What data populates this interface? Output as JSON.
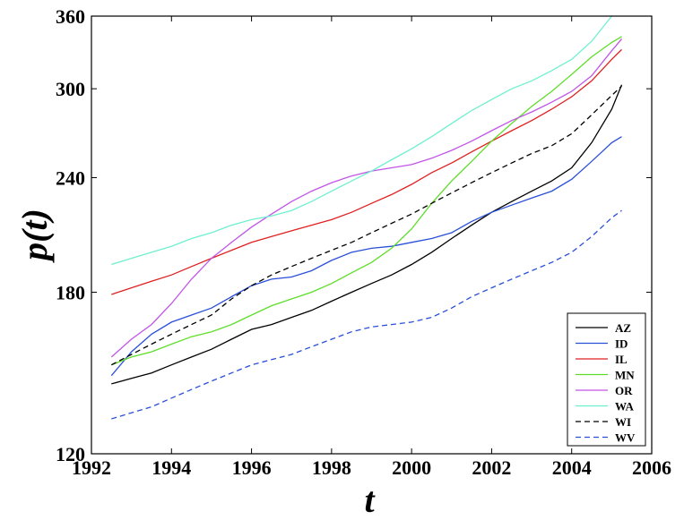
{
  "chart_data": {
    "type": "line",
    "title": "",
    "xlabel": "t",
    "ylabel": "p(t)",
    "xlim": [
      1992,
      2006
    ],
    "ylim": [
      120,
      360
    ],
    "yscale": "log",
    "xticks": [
      "1992",
      "1994",
      "1996",
      "1998",
      "2000",
      "2002",
      "2004",
      "2006"
    ],
    "yticks": [
      "120",
      "180",
      "240",
      "300",
      "360"
    ],
    "legend_position": "bottom-right",
    "grid": false,
    "series": [
      {
        "name": "AZ",
        "color": "#000000",
        "dash": "solid",
        "x": [
          1992.5,
          1993,
          1993.5,
          1994,
          1994.5,
          1995,
          1995.5,
          1996,
          1996.5,
          1997,
          1997.5,
          1998,
          1998.5,
          1999,
          1999.5,
          2000,
          2000.5,
          2001,
          2001.5,
          2002,
          2002.5,
          2003,
          2003.5,
          2004,
          2004.5,
          2005,
          2005.25
        ],
        "y": [
          143,
          145,
          147,
          150,
          153,
          156,
          160,
          164,
          166,
          169,
          172,
          176,
          180,
          184,
          188,
          193,
          199,
          206,
          213,
          220,
          226,
          232,
          238,
          246,
          262,
          285,
          303
        ]
      },
      {
        "name": "ID",
        "color": "#2a4fd8",
        "dash": "solid",
        "x": [
          1992.5,
          1993,
          1993.5,
          1994,
          1994.5,
          1995,
          1995.5,
          1996,
          1996.5,
          1997,
          1997.5,
          1998,
          1998.5,
          1999,
          1999.5,
          2000,
          2000.5,
          2001,
          2001.5,
          2002,
          2002.5,
          2003,
          2003.5,
          2004,
          2004.5,
          2005,
          2005.25
        ],
        "y": [
          146,
          155,
          162,
          167,
          170,
          173,
          178,
          183,
          186,
          187,
          190,
          195,
          199,
          201,
          202,
          204,
          206,
          209,
          215,
          220,
          224,
          228,
          232,
          239,
          250,
          262,
          266
        ]
      },
      {
        "name": "IL",
        "color": "#e02020",
        "dash": "solid",
        "x": [
          1992.5,
          1993,
          1993.5,
          1994,
          1994.5,
          1995,
          1995.5,
          1996,
          1996.5,
          1997,
          1997.5,
          1998,
          1998.5,
          1999,
          1999.5,
          2000,
          2000.5,
          2001,
          2001.5,
          2002,
          2002.5,
          2003,
          2003.5,
          2004,
          2004.5,
          2005,
          2005.25
        ],
        "y": [
          179,
          182,
          185,
          188,
          192,
          196,
          200,
          204,
          207,
          210,
          213,
          216,
          220,
          225,
          230,
          236,
          243,
          249,
          256,
          263,
          270,
          277,
          285,
          294,
          306,
          323,
          331
        ]
      },
      {
        "name": "MN",
        "color": "#5fdd2a",
        "dash": "solid",
        "x": [
          1992.5,
          1993,
          1993.5,
          1994,
          1994.5,
          1995,
          1995.5,
          1996,
          1996.5,
          1997,
          1997.5,
          1998,
          1998.5,
          1999,
          1999.5,
          2000,
          2000.5,
          2001,
          2001.5,
          2002,
          2002.5,
          2003,
          2003.5,
          2004,
          2004.5,
          2005,
          2005.25
        ],
        "y": [
          150,
          153,
          155,
          158,
          161,
          163,
          166,
          170,
          174,
          177,
          180,
          184,
          189,
          194,
          201,
          211,
          225,
          238,
          250,
          263,
          275,
          287,
          298,
          311,
          325,
          337,
          342
        ]
      },
      {
        "name": "OR",
        "color": "#c055e6",
        "dash": "solid",
        "x": [
          1992.5,
          1993,
          1993.5,
          1994,
          1994.5,
          1995,
          1995.5,
          1996,
          1996.5,
          1997,
          1997.5,
          1998,
          1998.5,
          1999,
          1999.5,
          2000,
          2000.5,
          2001,
          2001.5,
          2002,
          2002.5,
          2003,
          2003.5,
          2004,
          2004.5,
          2005,
          2005.25
        ],
        "y": [
          153,
          160,
          166,
          175,
          186,
          196,
          204,
          212,
          219,
          226,
          232,
          237,
          241,
          244,
          246,
          248,
          252,
          257,
          263,
          270,
          277,
          283,
          290,
          298,
          310,
          330,
          340
        ]
      },
      {
        "name": "WA",
        "color": "#6ef0cf",
        "dash": "solid",
        "x": [
          1992.5,
          1993,
          1993.5,
          1994,
          1994.5,
          1995,
          1995.5,
          1996,
          1996.5,
          1997,
          1997.5,
          1998,
          1998.5,
          1999,
          1999.5,
          2000,
          2000.5,
          2001,
          2001.5,
          2002,
          2002.5,
          2003,
          2003.5,
          2004,
          2004.5,
          2005
        ],
        "y": [
          193,
          196,
          199,
          202,
          206,
          209,
          213,
          216,
          218,
          221,
          226,
          232,
          238,
          244,
          251,
          258,
          266,
          275,
          284,
          292,
          300,
          306,
          314,
          323,
          338,
          360
        ]
      },
      {
        "name": "WI",
        "color": "#000000",
        "dash": "dashed",
        "x": [
          1992.5,
          1993,
          1993.5,
          1994,
          1994.5,
          1995,
          1995.5,
          1996,
          1996.5,
          1997,
          1997.5,
          1998,
          1998.5,
          1999,
          1999.5,
          2000,
          2000.5,
          2001,
          2001.5,
          2002,
          2002.5,
          2003,
          2003.5,
          2004,
          2004.5,
          2005,
          2005.25
        ],
        "y": [
          150,
          154,
          158,
          162,
          166,
          170,
          177,
          183,
          188,
          192,
          196,
          200,
          204,
          209,
          214,
          219,
          225,
          231,
          237,
          243,
          249,
          255,
          260,
          268,
          281,
          295,
          302
        ]
      },
      {
        "name": "WV",
        "color": "#2a4fd8",
        "dash": "dashed",
        "x": [
          1992.5,
          1993,
          1993.5,
          1994,
          1994.5,
          1995,
          1995.5,
          1996,
          1996.5,
          1997,
          1997.5,
          1998,
          1998.5,
          1999,
          1999.5,
          2000,
          2000.5,
          2001,
          2001.5,
          2002,
          2002.5,
          2003,
          2003.5,
          2004,
          2004.5,
          2005,
          2005.25
        ],
        "y": [
          131,
          133,
          135,
          138,
          141,
          144,
          147,
          150,
          152,
          154,
          157,
          160,
          163,
          165,
          166,
          167,
          169,
          173,
          178,
          182,
          186,
          190,
          194,
          199,
          207,
          217,
          221
        ]
      }
    ]
  }
}
